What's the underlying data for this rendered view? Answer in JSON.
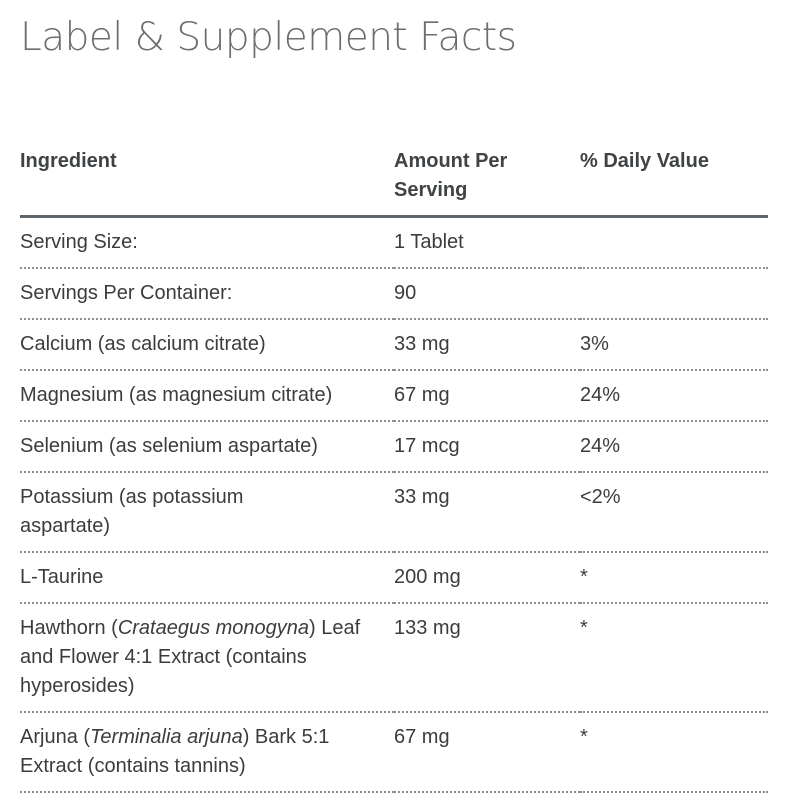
{
  "page": {
    "title": "Label & Supplement Facts"
  },
  "table": {
    "headers": {
      "ingredient": "Ingredient",
      "amount": "Amount Per Serving",
      "daily_value": "% Daily Value"
    },
    "rows": [
      {
        "ingredient": "Serving Size:",
        "amount": "1 Tablet",
        "daily_value": ""
      },
      {
        "ingredient": "Servings Per Container:",
        "amount": "90",
        "daily_value": ""
      },
      {
        "ingredient": "Calcium (as calcium citrate)",
        "amount": "33 mg",
        "daily_value": "3%"
      },
      {
        "ingredient": "Magnesium (as magnesium citrate)",
        "amount": "67 mg",
        "daily_value": "24%"
      },
      {
        "ingredient": "Selenium (as selenium aspartate)",
        "amount": "17 mcg",
        "daily_value": "24%"
      },
      {
        "ingredient": "Potassium (as potassium aspartate)",
        "amount": "33 mg",
        "daily_value": "<2%"
      },
      {
        "ingredient": "L-Taurine",
        "amount": "200 mg",
        "daily_value": "*"
      },
      {
        "ingredient_parts": {
          "before": "Hawthorn (",
          "italic": "Crataegus monogyna",
          "after": ") Leaf and Flower 4:1 Extract (contains hyperosides)"
        },
        "amount": "133 mg",
        "daily_value": "*"
      },
      {
        "ingredient_parts": {
          "before": "Arjuna (",
          "italic": "Terminalia arjuna",
          "after": ") Bark 5:1 Extract (contains tannins)"
        },
        "amount": "67 mg",
        "daily_value": "*"
      }
    ]
  }
}
